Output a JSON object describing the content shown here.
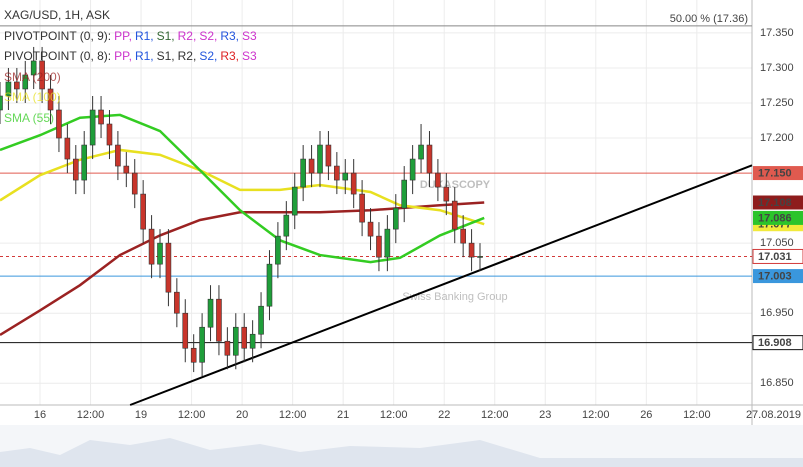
{
  "chart_data": {
    "type": "candlestick",
    "title": "XAG/USD, 1H, ASK",
    "indicators": [
      {
        "label": "PIVOTPOINT (0, 9):",
        "items": [
          {
            "text": "PP,",
            "color": "#cc33cc"
          },
          {
            "text": "R1,",
            "color": "#2255dd"
          },
          {
            "text": "S1,",
            "color": "#336633"
          },
          {
            "text": "R2,",
            "color": "#cc33cc"
          },
          {
            "text": "S2,",
            "color": "#cc33cc"
          },
          {
            "text": "R3,",
            "color": "#2255dd"
          },
          {
            "text": "S3",
            "color": "#cc33cc"
          }
        ]
      },
      {
        "label": "PIVOTPOINT (0, 8):",
        "items": [
          {
            "text": "PP,",
            "color": "#cc33cc"
          },
          {
            "text": "R1,",
            "color": "#2255dd"
          },
          {
            "text": "S1,",
            "color": "#333333"
          },
          {
            "text": "R2,",
            "color": "#333333"
          },
          {
            "text": "S2,",
            "color": "#2255dd"
          },
          {
            "text": "R3,",
            "color": "#dd2222"
          },
          {
            "text": "S3",
            "color": "#cc33cc"
          }
        ]
      }
    ],
    "watermark": [
      "DUKASCOPY",
      "Swiss Banking Group"
    ],
    "date_label": "27.08.2019",
    "xlim": [
      0,
      178.6
    ],
    "xticks": [
      {
        "value": 9.5,
        "label": "16"
      },
      {
        "value": 21.5,
        "label": "12:00"
      },
      {
        "value": 33.5,
        "label": "19"
      },
      {
        "value": 45.5,
        "label": "12:00"
      },
      {
        "value": 57.5,
        "label": "20"
      },
      {
        "value": 69.5,
        "label": "12:00"
      },
      {
        "value": 81.5,
        "label": "21"
      },
      {
        "value": 93.5,
        "label": "12:00"
      },
      {
        "value": 105.5,
        "label": "22"
      },
      {
        "value": 117.5,
        "label": "12:00"
      },
      {
        "value": 129.5,
        "label": "23"
      },
      {
        "value": 141.5,
        "label": "12:00"
      },
      {
        "value": 153.5,
        "label": "26"
      },
      {
        "value": 165.5,
        "label": "12:00"
      }
    ],
    "ylim": [
      16.819,
      17.397
    ],
    "yticks": [
      {
        "value": 17.35,
        "label": "17.350"
      },
      {
        "value": 17.3,
        "label": "17.300"
      },
      {
        "value": 17.25,
        "label": "17.250"
      },
      {
        "value": 17.2,
        "label": "17.200"
      },
      {
        "value": 17.05,
        "label": "17.050"
      },
      {
        "value": 16.95,
        "label": "16.950"
      },
      {
        "value": 16.85,
        "label": "16.850"
      }
    ],
    "grid": true,
    "up_color": "#1f9e3a",
    "down_color": "#c8352b",
    "candles": {
      "x": [
        0,
        2,
        4,
        6,
        8,
        10,
        12,
        14,
        16,
        18,
        20,
        22,
        24,
        26,
        28,
        30,
        32,
        34,
        36,
        38,
        40,
        42,
        44,
        46,
        48,
        50,
        52,
        54,
        56,
        58,
        60,
        62,
        64,
        66,
        68,
        70,
        72,
        74,
        76,
        78,
        80,
        82,
        84,
        86,
        88,
        90,
        92,
        94,
        96,
        98,
        100,
        102,
        104,
        106,
        108,
        110,
        112,
        114
      ],
      "open": [
        17.24,
        17.26,
        17.28,
        17.27,
        17.29,
        17.31,
        17.27,
        17.24,
        17.2,
        17.17,
        17.14,
        17.19,
        17.24,
        17.22,
        17.19,
        17.16,
        17.15,
        17.12,
        17.07,
        17.02,
        17.05,
        16.98,
        16.95,
        16.9,
        16.88,
        16.93,
        16.97,
        16.91,
        16.89,
        16.93,
        16.9,
        16.92,
        16.96,
        17.02,
        17.06,
        17.09,
        17.13,
        17.17,
        17.15,
        17.19,
        17.16,
        17.14,
        17.15,
        17.12,
        17.08,
        17.06,
        17.03,
        17.07,
        17.1,
        17.14,
        17.17,
        17.19,
        17.15,
        17.13,
        17.11,
        17.07,
        17.05,
        17.03
      ],
      "high": [
        17.28,
        17.3,
        17.3,
        17.31,
        17.33,
        17.33,
        17.29,
        17.26,
        17.22,
        17.19,
        17.21,
        17.26,
        17.26,
        17.24,
        17.21,
        17.18,
        17.17,
        17.14,
        17.09,
        17.07,
        17.07,
        17.0,
        16.97,
        16.92,
        16.95,
        16.99,
        16.99,
        16.93,
        16.95,
        16.95,
        16.94,
        16.98,
        17.04,
        17.08,
        17.11,
        17.15,
        17.19,
        17.19,
        17.21,
        17.21,
        17.18,
        17.17,
        17.17,
        17.14,
        17.1,
        17.08,
        17.09,
        17.12,
        17.16,
        17.19,
        17.22,
        17.21,
        17.17,
        17.15,
        17.13,
        17.09,
        17.07,
        17.05
      ],
      "low": [
        17.22,
        17.24,
        17.25,
        17.25,
        17.27,
        17.25,
        17.22,
        17.18,
        17.15,
        17.12,
        17.12,
        17.17,
        17.2,
        17.17,
        17.14,
        17.13,
        17.1,
        17.05,
        17.0,
        17.0,
        16.96,
        16.93,
        16.88,
        16.866,
        16.86,
        16.91,
        16.89,
        16.87,
        16.87,
        16.88,
        16.88,
        16.9,
        16.94,
        17.0,
        17.04,
        17.07,
        17.11,
        17.13,
        17.13,
        17.14,
        17.12,
        17.12,
        17.1,
        17.06,
        17.04,
        17.01,
        17.01,
        17.05,
        17.08,
        17.12,
        17.15,
        17.13,
        17.11,
        17.09,
        17.05,
        17.03,
        17.01,
        17.01
      ],
      "close": [
        17.26,
        17.28,
        17.27,
        17.29,
        17.31,
        17.27,
        17.24,
        17.2,
        17.17,
        17.14,
        17.19,
        17.24,
        17.22,
        17.19,
        17.16,
        17.15,
        17.12,
        17.07,
        17.02,
        17.05,
        16.98,
        16.95,
        16.9,
        16.88,
        16.93,
        16.97,
        16.91,
        16.89,
        16.93,
        16.9,
        16.92,
        16.96,
        17.02,
        17.06,
        17.09,
        17.13,
        17.17,
        17.15,
        17.19,
        17.16,
        17.14,
        17.15,
        17.12,
        17.08,
        17.06,
        17.03,
        17.07,
        17.1,
        17.14,
        17.17,
        17.19,
        17.15,
        17.13,
        17.11,
        17.07,
        17.05,
        17.03,
        17.031
      ]
    },
    "ma": [
      {
        "name": "SMA (200)",
        "color": "#9b2222",
        "x": [
          0,
          9.5,
          19,
          28.5,
          38,
          47.5,
          57,
          66.5,
          76,
          88,
          95,
          104.5,
          115
        ],
        "values": [
          16.919,
          16.954,
          16.99,
          17.033,
          17.061,
          17.083,
          17.094,
          17.094,
          17.094,
          17.097,
          17.1,
          17.104,
          17.108
        ]
      },
      {
        "name": "SMA (100)",
        "color": "#e8e020",
        "x": [
          0,
          9.5,
          19,
          28.5,
          38,
          47.5,
          57,
          66.5,
          76,
          88,
          95,
          104.5,
          115
        ],
        "values": [
          17.111,
          17.147,
          17.169,
          17.183,
          17.176,
          17.154,
          17.126,
          17.126,
          17.133,
          17.123,
          17.104,
          17.097,
          17.077
        ]
      },
      {
        "name": "SMA (55)",
        "color": "#33cc22",
        "x": [
          0,
          9.5,
          19,
          28.5,
          38,
          47.5,
          57,
          66.5,
          76,
          88,
          95,
          104.5,
          115
        ],
        "values": [
          17.183,
          17.204,
          17.229,
          17.233,
          17.21,
          17.154,
          17.097,
          17.054,
          17.033,
          17.023,
          17.029,
          17.061,
          17.086
        ]
      }
    ],
    "trend_line": {
      "color": "#000000",
      "x": [
        30.9,
        178.6
      ],
      "values": [
        16.819,
        17.161
      ]
    },
    "fib_line": {
      "value": 17.36,
      "label": "50.00 % (17.36)",
      "color": "#888888"
    },
    "levels": [
      {
        "value": 17.15,
        "label": "17.150",
        "color": "#e05a4f",
        "text_color": "#ffffff",
        "line": true,
        "dash": false
      },
      {
        "value": 17.108,
        "color": "#8e1c1c",
        "text_color": "#ffffff",
        "line": false,
        "dash": false
      },
      {
        "value": 17.077,
        "color": "#f2ea3c",
        "text_color": "#333333",
        "line": false,
        "dash": false
      },
      {
        "value": 17.086,
        "color": "#2bc42b",
        "text_color": "#ffffff",
        "line": false,
        "dash": false
      },
      {
        "value": 17.031,
        "color": "#d23a3a",
        "text_color": "#d23a3a",
        "line": true,
        "dash": true
      },
      {
        "value": 17.003,
        "color": "#3a97dd",
        "text_color": "#ffffff",
        "line": true,
        "dash": false
      },
      {
        "value": 16.908,
        "color": "#111111",
        "text_color": "#111111",
        "line": true,
        "dash": false
      }
    ]
  }
}
